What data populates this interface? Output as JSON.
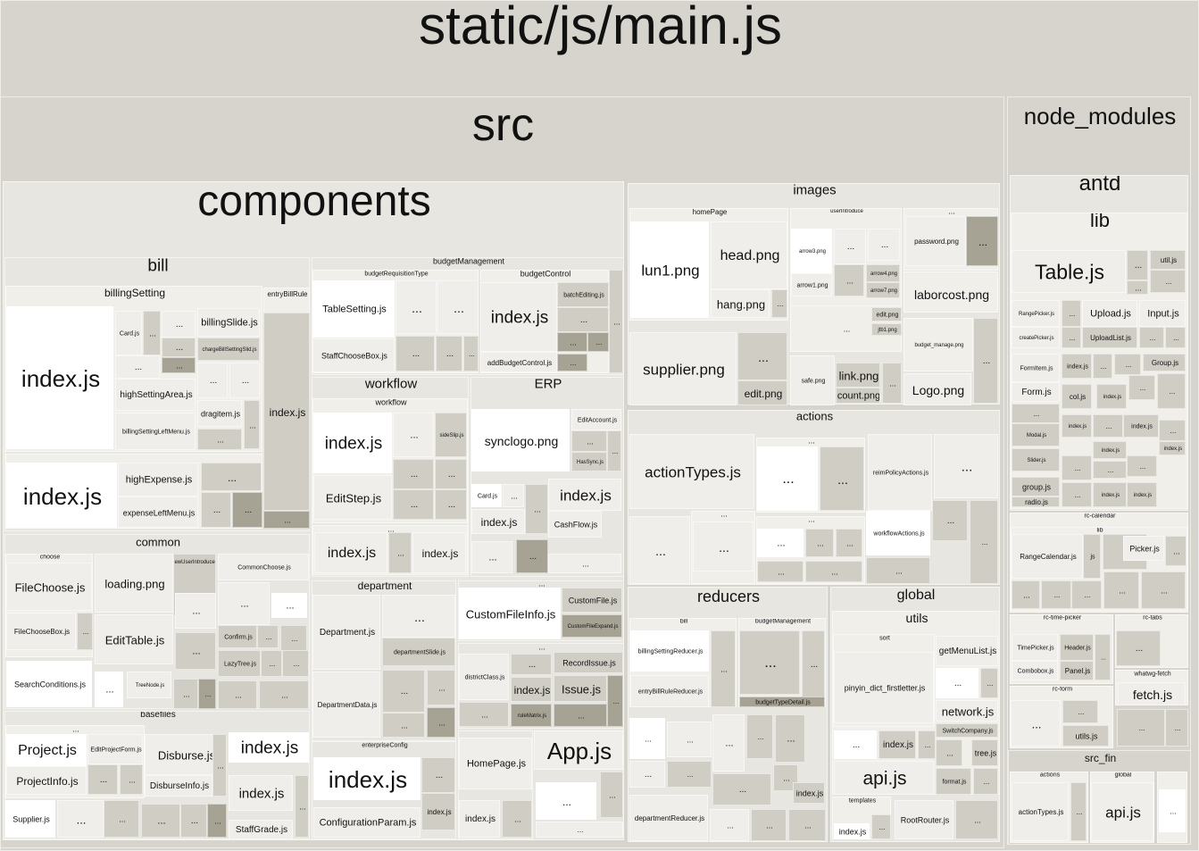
{
  "title": "static/js/main.js",
  "colors": {
    "background": "#d8d6cf",
    "level1": "#d6d4cc",
    "level2": "#e7e6e0",
    "level3": "#f0efea",
    "leaf_white": "#ffffff",
    "leaf_light": "#efeeea",
    "leaf_mid": "#cfcdc4",
    "leaf_dark": "#a7a394",
    "text": "#111111"
  },
  "modules": {
    "src": "src",
    "node_modules": "node_modules",
    "antd": "antd",
    "lib": "lib",
    "components": "components",
    "images": "images",
    "actions": "actions",
    "reducers": "reducers",
    "global": "global",
    "utils": "utils",
    "bill": "bill",
    "billingSetting": "billingSetting",
    "entryBillRule": "entryBillRule",
    "budgetManagement": "budgetManagement",
    "budgetRequisitionType": "budgetRequisitionType",
    "budgetControl": "budgetControl",
    "workflow": "workflow",
    "workflow_sub": "workflow",
    "ERP": "ERP",
    "common": "common",
    "choose": "choose",
    "department": "department",
    "basefiles": "basefiles",
    "enterpriseConfig": "enterpriseConfig",
    "homePage": "homePage",
    "userIntroduce": "userIntroduce",
    "rc_calendar": "rc-calendar",
    "rc_calendar_lib": "lib",
    "rc_time_picker": "rc-time-picker",
    "rc_tabs": "rc-tabs",
    "rc_form": "rc-form",
    "whatwg_fetch": "whatwg-fetch",
    "src_fin": "src_fin",
    "src_fin_actions": "actions",
    "src_fin_global": "global",
    "reducers_bill": "bill",
    "reducers_budgetManagement": "budgetManagement",
    "sort": "sort",
    "templates": "templates"
  },
  "files": {
    "ellipsis": "...",
    "billing_index": "index.js",
    "card": "Card.js",
    "billingSlide": "billingSlide.js",
    "chargeBillSettingSlid": "chargeBillSettingSlid.js",
    "highSettingArea": "highSettingArea.js",
    "dragitem": "dragitem.js",
    "billingSettingLeftMenu": "billingSettingLeftMenu.js",
    "entry_index": "index.js",
    "bill_index2": "index.js",
    "highExpense": "highExpense.js",
    "expenseLeftMenu": "expenseLeftMenu.js",
    "tableSetting": "TableSetting.js",
    "staffChooseBox": "StaffChooseBox.js",
    "budgetControl_index": "index.js",
    "batchEditing": "batchEditing.js",
    "addBudgetControl": "addBudgetControl.js",
    "workflow_index": "index.js",
    "sideSlip": "sideSlip.js",
    "editStep": "EditStep.js",
    "workflow_index2": "index.js",
    "workflow_index3": "index.js",
    "synclogo": "synclogo.png",
    "editAccount": "EditAccount.js",
    "hasSync": "HasSync.js",
    "erp_card": "Card.js",
    "erp_index_small": "index.js",
    "erp_index_big": "index.js",
    "cashFlow": "CashFlow.js",
    "fileChoose": "FileChoose.js",
    "fileChooseBox": "FileChooseBox.js",
    "searchConditions": "SearchConditions.js",
    "loadingPng": "loading.png",
    "editTable": "EditTable.js",
    "newUserIntroduce": "NewUserIntroduce.js",
    "commonChoose": "CommonChoose.js",
    "confirm": "Confirm.js",
    "lazyTree": "LazyTree.js",
    "treeNode": "TreeNode.js",
    "departmentJs": "Department.js",
    "departmentSlide": "departmentSlide.js",
    "departmentData": "DepartmentData.js",
    "customFileInfo": "CustomFileInfo.js",
    "customFile": "CustomFile.js",
    "customFileExpand": "CustomFileExpand.js",
    "districtClass": "districtClass.js",
    "cf_index": "index.js",
    "recordIssue": "RecordIssue.js",
    "issue": "Issue.js",
    "ruleMatrix": "ruleMatrix.js",
    "project": "Project.js",
    "editProjectForm": "EditProjectForm.js",
    "projectInfo": "ProjectInfo.js",
    "supplier": "Supplier.js",
    "disburse": "Disburse.js",
    "disburseInfo": "DisburseInfo.js",
    "basefiles_index": "index.js",
    "basefiles_index2": "index.js",
    "staffGrade": "StaffGrade.js",
    "enterprise_index": "index.js",
    "configurationParam": "ConfigurationParam.js",
    "enterprise_index_small": "index.js",
    "homePageJs": "HomePage.js",
    "homePage_index": "index.js",
    "appJs": "App.js",
    "lun1": "lun1.png",
    "head": "head.png",
    "hang": "hang.png",
    "arrow3": "arrow3.png",
    "arrow1": "arrow1.png",
    "arrow4": "arrow4.png",
    "arrow7": "arrow7.png",
    "password": "password.png",
    "laborcost": "laborcost.png",
    "supplierPng": "supplier.png",
    "editPng": "edit.png",
    "editPng2": "edit.png",
    "jtb1": "jtb1.png",
    "budget_manage": "budget_manage.png",
    "safe": "safe.png",
    "link": "link.png",
    "count": "count.png",
    "logo": "Logo.png",
    "actionTypes": "actionTypes.js",
    "reimPolicyActions": "reimPolicyActions.js",
    "workflowActions": "workflowActions.js",
    "billingSettingReducer": "billingSettingReducer.js",
    "entryBillRuleReducer": "entryBillRuleReducer.js",
    "budgetTypeDetail": "budgetTypeDetail.js",
    "departmentReducer": "departmentReducer.js",
    "reducers_index": "index.js",
    "pinyin": "pinyin_dict_firstletter.js",
    "getMenuList": "getMenuList.js",
    "network": "network.js",
    "switchCompany": "SwitchCompany.js",
    "utils_index": "index.js",
    "tree": "tree.js",
    "format": "format.js",
    "api": "api.js",
    "templates_index": "index.js",
    "rootRouter": "RootRouter.js",
    "tableJs": "Table.js",
    "utilJs": "util.js",
    "rangePicker": "RangePicker.js",
    "upload": "Upload.js",
    "input": "Input.js",
    "createPicker": "createPicker.js",
    "uploadList": "UploadList.js",
    "formItem": "FormItem.js",
    "antd_index": "index.js",
    "group": "Group.js",
    "form": "Form.js",
    "col": "col.js",
    "antd_index2": "index.js",
    "modal": "Modal.js",
    "antd_index3": "index.js",
    "antd_index4": "index.js",
    "antd_index5": "index.js",
    "slider": "Slider.js",
    "antd_index6": "index.js",
    "groupLower": "group.js",
    "radio": "radio.js",
    "antd_index7": "index.js",
    "antd_index8": "index.js",
    "rangeCalendar": "RangeCalendar.js",
    "rc_js": "js",
    "picker": "Picker.js",
    "timePicker": "TimePicker.js",
    "header": "Header.js",
    "combobox": "Combobox.js",
    "panel": "Panel.js",
    "utilsJs": "utils.js",
    "fetch": "fetch.js",
    "fin_actionTypes": "actionTypes.js",
    "fin_api": "api.js"
  }
}
